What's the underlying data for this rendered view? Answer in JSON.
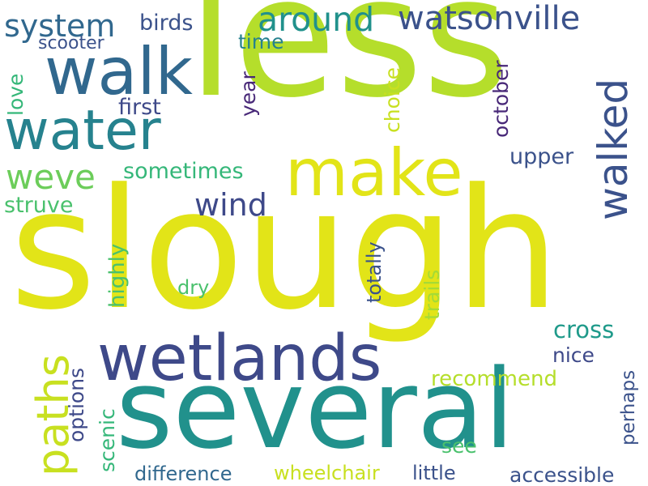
{
  "words": [
    {
      "text": "less",
      "color": "#b5de2b"
    },
    {
      "text": "slough",
      "color": "#e2e418"
    },
    {
      "text": "several",
      "color": "#21918c"
    },
    {
      "text": "walk",
      "color": "#31688e"
    },
    {
      "text": "make",
      "color": "#e2e418"
    },
    {
      "text": "water",
      "color": "#26828e"
    },
    {
      "text": "wetlands",
      "color": "#3e4989"
    },
    {
      "text": "walked",
      "color": "#3b528b"
    },
    {
      "text": "paths",
      "color": "#c8e020"
    },
    {
      "text": "weve",
      "color": "#6ccd5a"
    },
    {
      "text": "around",
      "color": "#21918c"
    },
    {
      "text": "watsonville",
      "color": "#3b528b"
    },
    {
      "text": "system",
      "color": "#31688e"
    },
    {
      "text": "wind",
      "color": "#3e4989"
    },
    {
      "text": "cross",
      "color": "#1f9a8a"
    },
    {
      "text": "birds",
      "color": "#3b528b"
    },
    {
      "text": "scooter",
      "color": "#3b528b"
    },
    {
      "text": "time",
      "color": "#26828e"
    },
    {
      "text": "love",
      "color": "#35b779"
    },
    {
      "text": "first",
      "color": "#3e4989"
    },
    {
      "text": "year",
      "color": "#482878"
    },
    {
      "text": "choice",
      "color": "#c8e020"
    },
    {
      "text": "october",
      "color": "#482878"
    },
    {
      "text": "upper",
      "color": "#3b528b"
    },
    {
      "text": "sometimes",
      "color": "#35b779"
    },
    {
      "text": "struve",
      "color": "#4ac16d"
    },
    {
      "text": "highly",
      "color": "#4ac16d"
    },
    {
      "text": "dry",
      "color": "#4ac16d"
    },
    {
      "text": "totally",
      "color": "#3b528b"
    },
    {
      "text": "trails",
      "color": "#a5db36"
    },
    {
      "text": "options",
      "color": "#3e4989"
    },
    {
      "text": "scenic",
      "color": "#35b779"
    },
    {
      "text": "nice",
      "color": "#3e4989"
    },
    {
      "text": "recommend",
      "color": "#b5de2b"
    },
    {
      "text": "perhaps",
      "color": "#3b528b"
    },
    {
      "text": "see",
      "color": "#4ac16d"
    },
    {
      "text": "difference",
      "color": "#31688e"
    },
    {
      "text": "wheelchair",
      "color": "#c8e020"
    },
    {
      "text": "little",
      "color": "#3b528b"
    },
    {
      "text": "accessible",
      "color": "#3b528b"
    }
  ]
}
